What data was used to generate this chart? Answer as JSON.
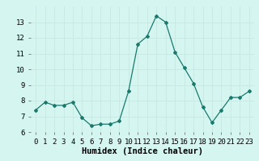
{
  "x": [
    0,
    1,
    2,
    3,
    4,
    5,
    6,
    7,
    8,
    9,
    10,
    11,
    12,
    13,
    14,
    15,
    16,
    17,
    18,
    19,
    20,
    21,
    22,
    23
  ],
  "y": [
    7.4,
    7.9,
    7.7,
    7.7,
    7.9,
    6.9,
    6.4,
    6.5,
    6.5,
    6.7,
    8.6,
    11.6,
    12.1,
    13.4,
    13.0,
    11.1,
    10.1,
    9.1,
    7.6,
    6.6,
    7.4,
    8.2,
    8.2,
    8.6
  ],
  "xlabel": "Humidex (Indice chaleur)",
  "ylim": [
    6,
    14
  ],
  "xlim": [
    -0.5,
    23.5
  ],
  "yticks": [
    6,
    7,
    8,
    9,
    10,
    11,
    12,
    13
  ],
  "xtick_labels": [
    "0",
    "1",
    "2",
    "3",
    "4",
    "5",
    "6",
    "7",
    "8",
    "9",
    "10",
    "11",
    "12",
    "13",
    "14",
    "15",
    "16",
    "17",
    "18",
    "19",
    "20",
    "21",
    "22",
    "23"
  ],
  "line_color": "#1a7a6e",
  "marker": "D",
  "marker_size": 2.0,
  "bg_color": "#d4f5f0",
  "grid_color": "#c8e8e0",
  "xlabel_fontsize": 7.5,
  "tick_fontsize": 6.5
}
